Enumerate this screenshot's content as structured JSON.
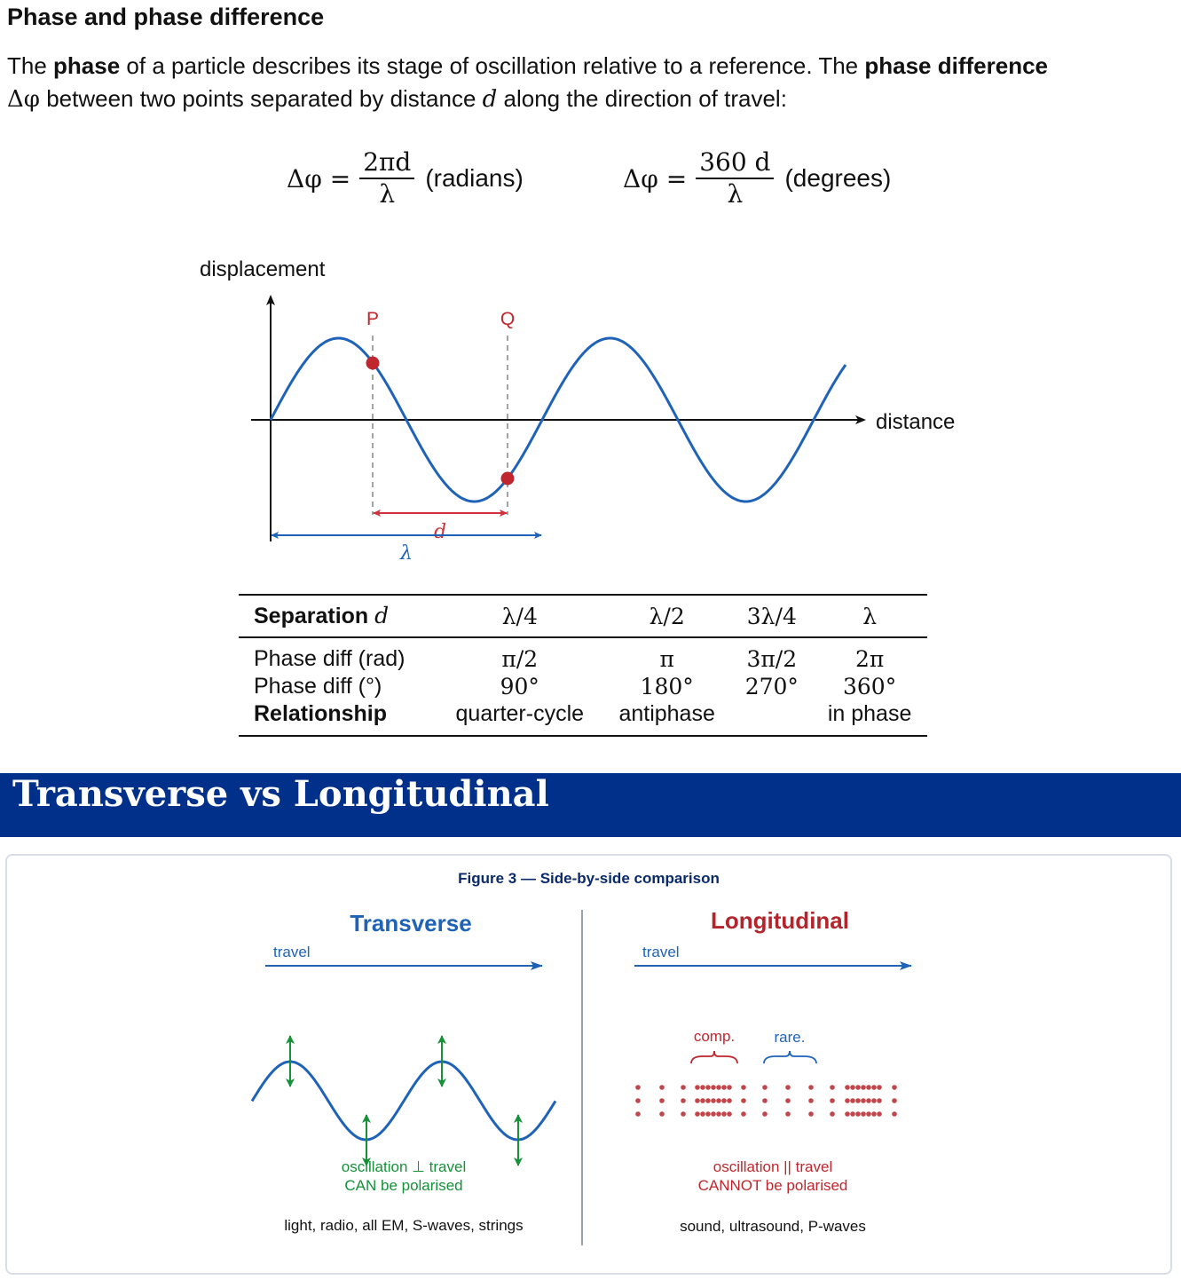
{
  "section": {
    "title": "Phase and phase difference",
    "intro": {
      "t1": "The ",
      "b1": "phase",
      "t2": " of a particle describes its stage of oscillation relative to a reference. The ",
      "b2": "phase difference",
      "sym": "Δφ",
      "t3": " between two points separated by distance ",
      "d": "d",
      "t4": " along the direction of travel:"
    }
  },
  "formulas": {
    "radians": {
      "lhs": "Δφ =",
      "num": "2πd",
      "den": "λ",
      "unit": "(radians)"
    },
    "degrees": {
      "lhs": "Δφ =",
      "num": "360 d",
      "den": "λ",
      "unit": "(degrees)"
    }
  },
  "wave_diagram": {
    "y_axis_label": "displacement",
    "x_axis_label": "distance",
    "point_p": "P",
    "point_q": "Q",
    "separation_label": "d",
    "wavelength_label": "λ",
    "colors": {
      "wave": "#1f63b8",
      "points": "#c0262d",
      "separation": "#d0313b",
      "wavelength": "#1f63b8"
    }
  },
  "phase_table": {
    "header": {
      "label": "Separation",
      "sym": "d"
    },
    "columns": [
      "λ/4",
      "λ/2",
      "3λ/4",
      "λ"
    ],
    "rows": [
      {
        "label": "Phase diff (rad)",
        "values": [
          "π/2",
          "π",
          "3π/2",
          "2π"
        ]
      },
      {
        "label": "Phase diff (°)",
        "values": [
          "90°",
          "180°",
          "270°",
          "360°"
        ]
      },
      {
        "label": "Relationship",
        "values": [
          "quarter-cycle",
          "antiphase",
          "",
          "in phase"
        ]
      }
    ]
  },
  "banner": {
    "title": "Transverse vs Longitudinal",
    "color": "#00308a"
  },
  "figure3": {
    "caption": "Figure 3 — Side-by-side comparison",
    "transverse": {
      "title": "Transverse",
      "travel": "travel",
      "note1": "oscillation ⊥ travel",
      "note2": "CAN be polarised",
      "examples": "light, radio, all EM, S-waves, strings",
      "colors": {
        "title": "#1f63b8",
        "oscillation": "#16913a"
      }
    },
    "longitudinal": {
      "title": "Longitudinal",
      "travel": "travel",
      "compression": "comp.",
      "rarefaction": "rare.",
      "note1": "oscillation || travel",
      "note2": "CANNOT be polarised",
      "examples": "sound, ultrasound, P-waves",
      "colors": {
        "title": "#b4242b",
        "particles": "#c0464b"
      }
    }
  }
}
